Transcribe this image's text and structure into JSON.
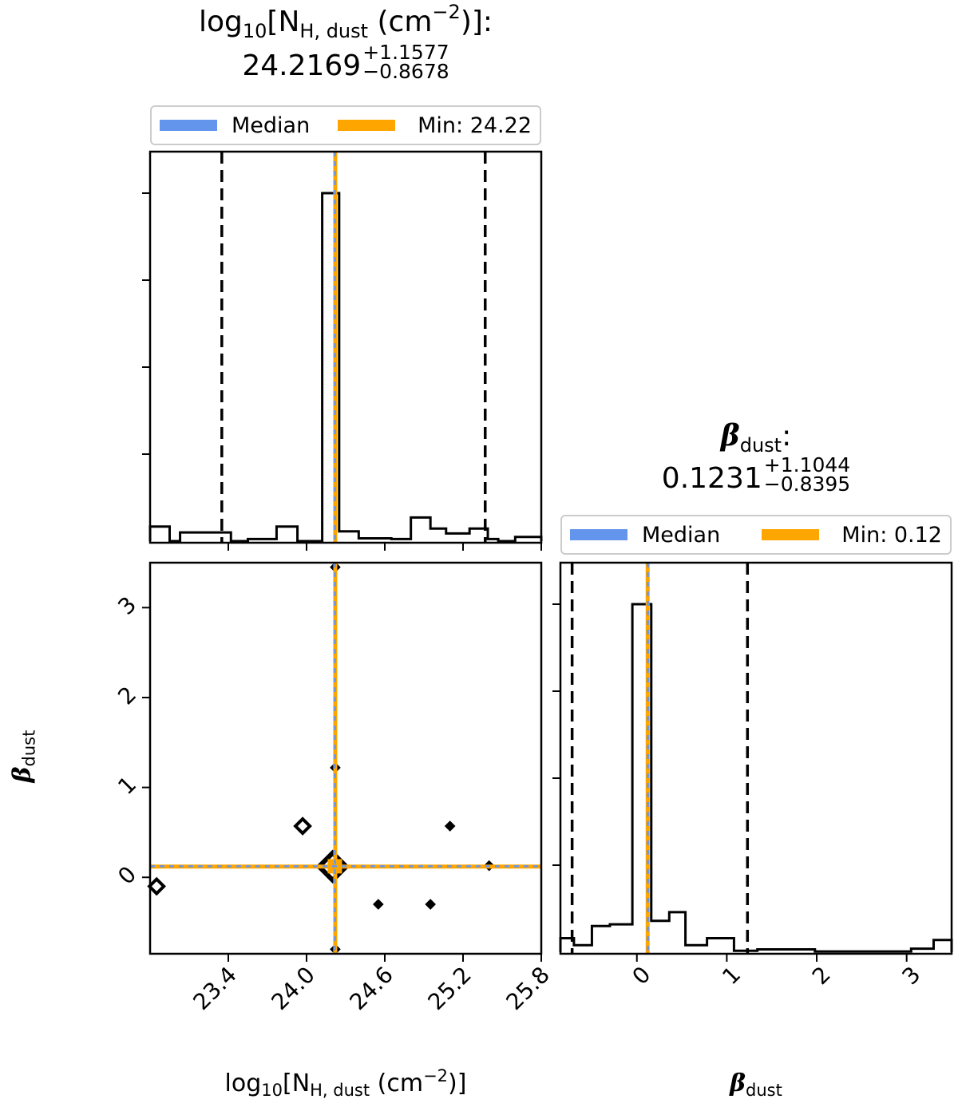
{
  "params": {
    "nh": {
      "title_math": "log10[NH, dust (cm-2)]",
      "title_value": "24.2169",
      "title_plus": "+1.1577",
      "title_minus": "−0.8678",
      "xlabel": "log10[NH, dust (cm−2)]",
      "legend_median": "Median",
      "legend_min": "Min: 24.22"
    },
    "beta": {
      "title_math": "βdust",
      "title_value": "0.1231",
      "title_plus": "+1.1044",
      "title_minus": "−0.8395",
      "xlabel": "βdust",
      "ylabel": "βdust",
      "legend_median": "Median",
      "legend_min": "Min: 0.12"
    }
  },
  "colors": {
    "median": "#6495ED",
    "min": "#FFA500",
    "line": "#000000",
    "legend_border": "#cccccc"
  },
  "chart_data": [
    {
      "type": "histogram",
      "panel": "top-left",
      "variable": "log10[NH, dust (cm−2)]",
      "xlim": [
        22.8,
        25.8
      ],
      "xticks": [
        "23.4",
        "24.0",
        "24.6",
        "25.2",
        "25.8"
      ],
      "bin_edges": [
        22.8,
        22.95,
        23.03,
        23.1,
        23.42,
        23.55,
        23.77,
        23.93,
        24.12,
        24.25,
        24.34,
        24.4,
        24.65,
        24.8,
        24.95,
        25.07,
        25.25,
        25.39,
        25.47,
        25.6,
        25.64,
        25.8
      ],
      "heights": [
        0.042,
        0.0,
        0.025,
        0.025,
        0.0,
        0.006,
        0.042,
        0.0,
        1.0,
        0.028,
        0.028,
        0.008,
        0.006,
        0.068,
        0.036,
        0.022,
        0.036,
        0.006,
        0.0,
        0.012,
        0.012
      ],
      "median": 24.2169,
      "min": 24.22,
      "quantile_lines": [
        23.35,
        25.37
      ],
      "legend": [
        "Median",
        "Min: 24.22"
      ],
      "legend_placement": "above"
    },
    {
      "type": "histogram",
      "panel": "bottom-right",
      "variable": "βdust",
      "xlim": [
        -0.85,
        3.5
      ],
      "xticks": [
        "0",
        "1",
        "2",
        "3"
      ],
      "bin_edges": [
        -0.85,
        -0.7,
        -0.5,
        -0.3,
        -0.05,
        0.16,
        0.36,
        0.54,
        0.78,
        1.08,
        1.34,
        1.98,
        2.4,
        3.05,
        3.3,
        3.5
      ],
      "heights": [
        0.04,
        0.02,
        0.075,
        0.08,
        1.0,
        0.09,
        0.115,
        0.02,
        0.04,
        0.004,
        0.008,
        0.002,
        0.002,
        0.01,
        0.035
      ],
      "median": 0.1231,
      "min": 0.12,
      "quantile_lines": [
        -0.72,
        1.23
      ],
      "legend": [
        "Median",
        "Min: 0.12"
      ],
      "legend_placement": "above"
    },
    {
      "type": "scatter",
      "panel": "bottom-left",
      "xlabel": "log10[NH, dust (cm−2)]",
      "ylabel": "βdust",
      "xlim": [
        22.8,
        25.8
      ],
      "ylim": [
        -0.85,
        3.5
      ],
      "xticks": [
        "23.4",
        "24.0",
        "24.6",
        "25.2",
        "25.8"
      ],
      "yticks": [
        "0",
        "1",
        "2",
        "3"
      ],
      "contour_points": [
        {
          "x": 22.85,
          "y": -0.1,
          "size": "small"
        },
        {
          "x": 23.97,
          "y": 0.57,
          "size": "small"
        },
        {
          "x": 24.2,
          "y": 0.12,
          "size": "large"
        },
        {
          "x": 24.22,
          "y": 1.22,
          "size": "tiny"
        },
        {
          "x": 24.22,
          "y": 3.45,
          "size": "tiny"
        },
        {
          "x": 24.22,
          "y": -0.8,
          "size": "tiny"
        },
        {
          "x": 24.55,
          "y": -0.3,
          "size": "tiny"
        },
        {
          "x": 24.95,
          "y": -0.3,
          "size": "tiny"
        },
        {
          "x": 25.1,
          "y": 0.57,
          "size": "tiny"
        },
        {
          "x": 25.4,
          "y": 0.13,
          "size": "tiny"
        }
      ],
      "median": {
        "x": 24.2169,
        "y": 0.1231
      },
      "min": {
        "x": 24.22,
        "y": 0.12
      }
    }
  ]
}
